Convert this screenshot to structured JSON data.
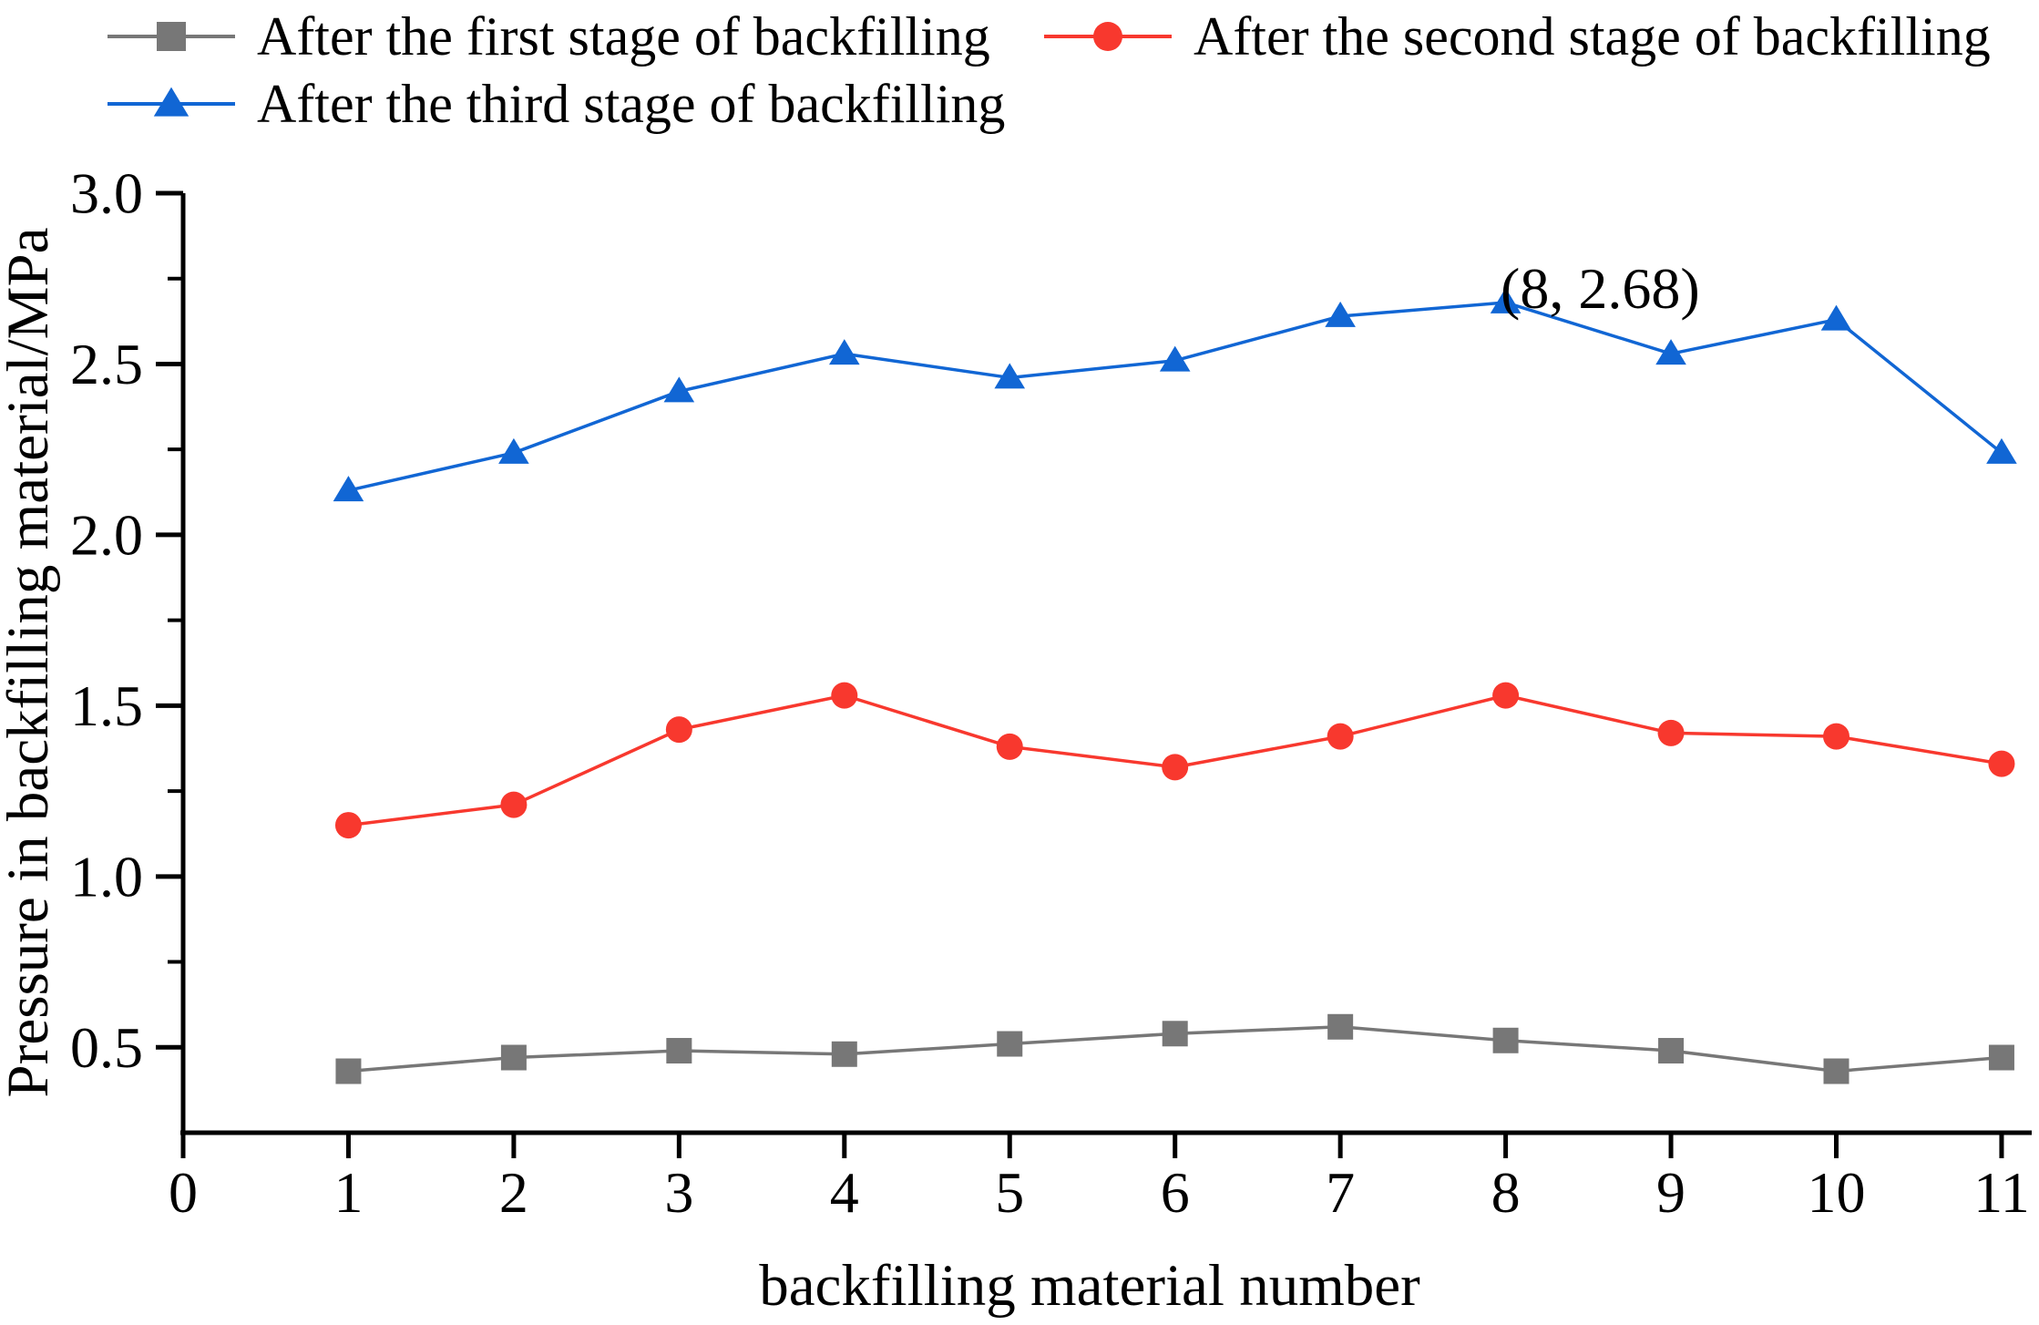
{
  "chart_data": {
    "type": "line",
    "x": [
      1,
      2,
      3,
      4,
      5,
      6,
      7,
      8,
      9,
      10,
      11
    ],
    "series": [
      {
        "name": "After the first stage of backfilling",
        "marker": "square",
        "color": "#777777",
        "values": [
          0.43,
          0.47,
          0.49,
          0.48,
          0.51,
          0.54,
          0.56,
          0.52,
          0.49,
          0.43,
          0.47
        ]
      },
      {
        "name": "After the second stage of backfilling",
        "marker": "circle",
        "color": "#F8382E",
        "values": [
          1.15,
          1.21,
          1.43,
          1.53,
          1.38,
          1.32,
          1.41,
          1.53,
          1.42,
          1.41,
          1.33
        ]
      },
      {
        "name": "After the third stage of backfilling",
        "marker": "triangle",
        "color": "#1166D4",
        "values": [
          2.13,
          2.24,
          2.42,
          2.53,
          2.46,
          2.51,
          2.64,
          2.68,
          2.53,
          2.63,
          2.24
        ]
      }
    ],
    "title": "",
    "xlabel": "backfilling material number",
    "ylabel": "Pressure in backfilling material/MPa",
    "xlim": [
      0,
      11.2
    ],
    "ylim": [
      0.25,
      3.0
    ],
    "xticks": [
      0,
      1,
      2,
      3,
      4,
      5,
      6,
      7,
      8,
      9,
      10,
      11
    ],
    "xtick_labels": [
      "0",
      "1",
      "2",
      "3",
      "4",
      "5",
      "6",
      "7",
      "8",
      "9",
      "10",
      "11"
    ],
    "yticks_major": [
      0.5,
      1.0,
      1.5,
      2.0,
      2.5,
      3.0
    ],
    "ytick_labels": [
      "0.5",
      "1.0",
      "1.5",
      "2.0",
      "2.5",
      "3.0"
    ],
    "yticks_minor": [
      0.75,
      1.25,
      1.75,
      2.25,
      2.75
    ],
    "grid": false,
    "legend_position": "top-left-two-rows",
    "annotation": {
      "text": "(8, 2.68)",
      "x": 8,
      "y": 2.68
    }
  }
}
